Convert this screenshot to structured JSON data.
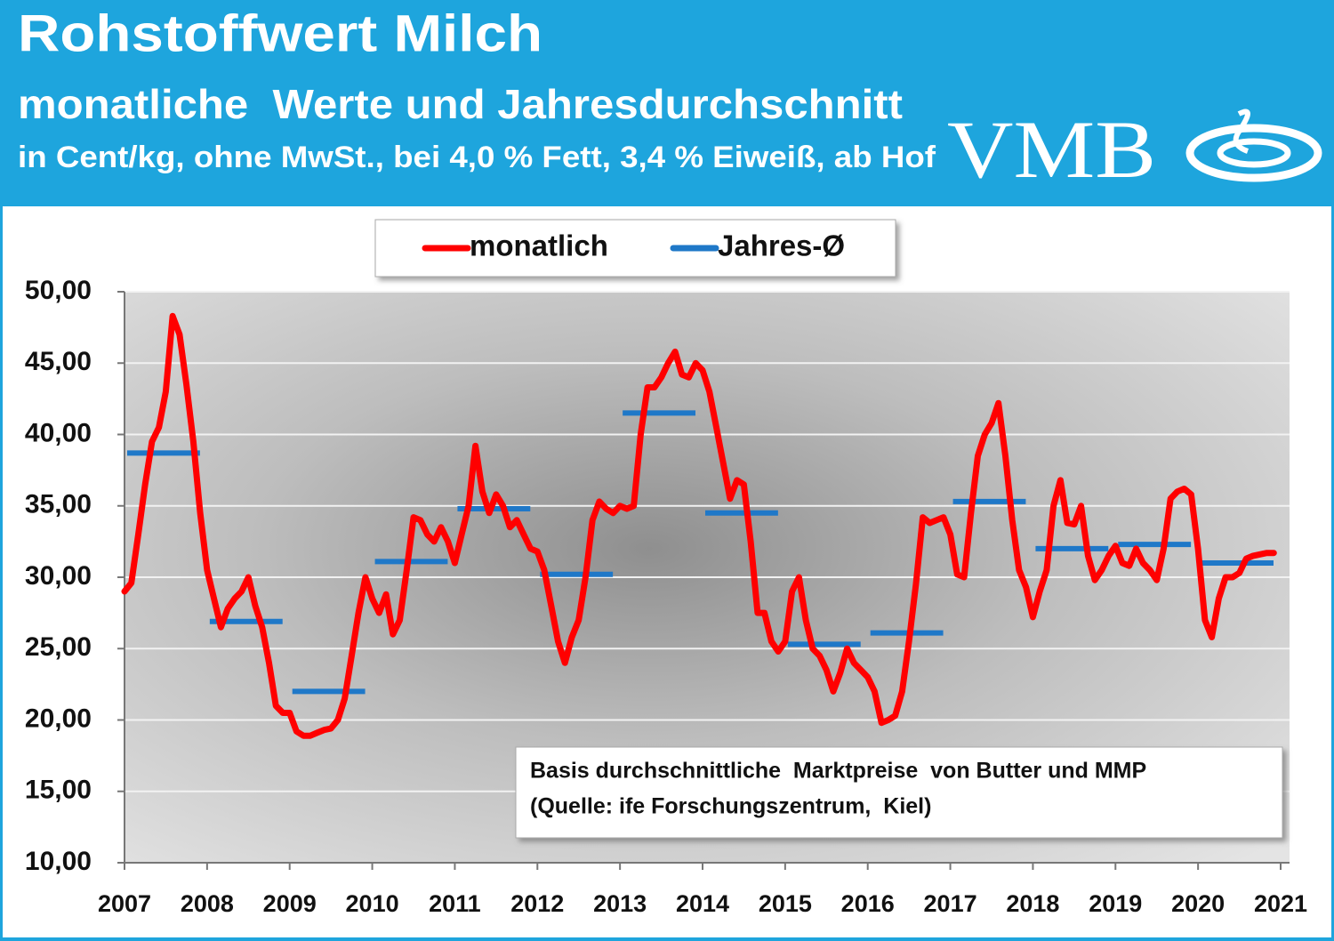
{
  "header": {
    "title": "Rohstoffwert Milch",
    "subtitle": "monatliche  Werte und Jahresdurchschnitt",
    "note": "in Cent/kg, ohne MwSt., bei 4,0 % Fett, 3,4 % Eiweiß, ab Hof",
    "logo": "VMB"
  },
  "chart_data": {
    "type": "line",
    "xlim": [
      2007,
      2021
    ],
    "xticks": [
      2007,
      2008,
      2009,
      2010,
      2011,
      2012,
      2013,
      2014,
      2015,
      2016,
      2017,
      2018,
      2019,
      2020,
      2021
    ],
    "ylim": [
      10,
      50
    ],
    "yticks": [
      {
        "value": 10,
        "label": "10,00"
      },
      {
        "value": 15,
        "label": "15,00"
      },
      {
        "value": 20,
        "label": "20,00"
      },
      {
        "value": 25,
        "label": "25,00"
      },
      {
        "value": 30,
        "label": "30,00"
      },
      {
        "value": 35,
        "label": "35,00"
      },
      {
        "value": 40,
        "label": "40,00"
      },
      {
        "value": 45,
        "label": "45,00"
      },
      {
        "value": 50,
        "label": "50,00"
      }
    ],
    "grid": true,
    "legend": "top",
    "annotation": [
      "Basis durchschnittliche  Marktpreise  von Butter und MMP",
      "(Quelle: ife Forschungszentrum,  Kiel)"
    ],
    "series": [
      {
        "name": "monatlich",
        "color": "#ff0000",
        "x": [
          2007,
          2007.083,
          2007.167,
          2007.25,
          2007.333,
          2007.417,
          2007.5,
          2007.583,
          2007.667,
          2007.75,
          2007.833,
          2007.917,
          2008,
          2008.083,
          2008.167,
          2008.25,
          2008.333,
          2008.417,
          2008.5,
          2008.583,
          2008.667,
          2008.75,
          2008.833,
          2008.917,
          2009,
          2009.083,
          2009.167,
          2009.25,
          2009.333,
          2009.417,
          2009.5,
          2009.583,
          2009.667,
          2009.75,
          2009.833,
          2009.917,
          2010,
          2010.083,
          2010.167,
          2010.25,
          2010.333,
          2010.417,
          2010.5,
          2010.583,
          2010.667,
          2010.75,
          2010.833,
          2010.917,
          2011,
          2011.083,
          2011.167,
          2011.25,
          2011.333,
          2011.417,
          2011.5,
          2011.583,
          2011.667,
          2011.75,
          2011.833,
          2011.917,
          2012,
          2012.083,
          2012.167,
          2012.25,
          2012.333,
          2012.417,
          2012.5,
          2012.583,
          2012.667,
          2012.75,
          2012.833,
          2012.917,
          2013,
          2013.083,
          2013.167,
          2013.25,
          2013.333,
          2013.417,
          2013.5,
          2013.583,
          2013.667,
          2013.75,
          2013.833,
          2013.917,
          2014,
          2014.083,
          2014.167,
          2014.25,
          2014.333,
          2014.417,
          2014.5,
          2014.583,
          2014.667,
          2014.75,
          2014.833,
          2014.917,
          2015,
          2015.083,
          2015.167,
          2015.25,
          2015.333,
          2015.417,
          2015.5,
          2015.583,
          2015.667,
          2015.75,
          2015.833,
          2015.917,
          2016,
          2016.083,
          2016.167,
          2016.25,
          2016.333,
          2016.417,
          2016.5,
          2016.583,
          2016.667,
          2016.75,
          2016.833,
          2016.917,
          2017,
          2017.083,
          2017.167,
          2017.25,
          2017.333,
          2017.417,
          2017.5,
          2017.583,
          2017.667,
          2017.75,
          2017.833,
          2017.917,
          2018,
          2018.083,
          2018.167,
          2018.25,
          2018.333,
          2018.417,
          2018.5,
          2018.583,
          2018.667,
          2018.75,
          2018.833,
          2018.917,
          2019,
          2019.083,
          2019.167,
          2019.25,
          2019.333,
          2019.417,
          2019.5,
          2019.583,
          2019.667,
          2019.75,
          2019.833,
          2019.917,
          2020,
          2020.083,
          2020.167,
          2020.25,
          2020.333,
          2020.417,
          2020.5,
          2020.583,
          2020.667,
          2020.75,
          2020.833,
          2020.917
        ],
        "values": [
          29.0,
          29.6,
          33,
          36.5,
          39.5,
          40.5,
          43,
          48.3,
          47,
          43.5,
          39.5,
          34.5,
          30.5,
          28.5,
          26.5,
          27.8,
          28.5,
          29,
          30,
          28,
          26.5,
          24,
          21,
          20.5,
          20.5,
          19.2,
          18.9,
          18.9,
          19.1,
          19.3,
          19.4,
          20,
          21.5,
          24.5,
          27.5,
          30,
          28.5,
          27.5,
          28.8,
          26,
          27,
          30.5,
          34.2,
          34,
          33,
          32.5,
          33.5,
          32.5,
          31,
          33,
          35,
          39.2,
          36,
          34.5,
          35.8,
          35,
          33.5,
          34,
          33,
          32,
          31.8,
          30.5,
          28,
          25.5,
          24,
          25.8,
          27,
          30,
          34,
          35.3,
          34.8,
          34.5,
          35,
          34.8,
          35,
          40,
          43.3,
          43.3,
          44,
          45,
          45.8,
          44.2,
          44,
          45,
          44.5,
          43,
          40.5,
          38,
          35.5,
          36.8,
          36.5,
          32.5,
          27.5,
          27.5,
          25.5,
          24.8,
          25.5,
          29,
          30,
          27,
          25,
          24.5,
          23.5,
          22,
          23.3,
          25,
          24,
          23.5,
          23,
          22,
          19.8,
          20,
          20.3,
          22,
          25.5,
          29.5,
          34.2,
          33.8,
          34,
          34.2,
          33,
          30.2,
          30,
          34.5,
          38.5,
          40,
          40.8,
          42.2,
          38.5,
          34,
          30.5,
          29.3,
          27.2,
          29,
          30.5,
          35,
          36.8,
          33.8,
          33.7,
          35,
          31.5,
          29.8,
          30.5,
          31.5,
          32.2,
          31,
          30.8,
          32,
          31,
          30.5,
          29.8,
          32,
          35.5,
          36,
          36.2,
          35.8,
          32,
          27,
          25.8,
          28.5,
          30,
          30,
          30.3,
          31.3,
          31.5,
          31.6,
          31.7,
          31.7
        ]
      },
      {
        "name": "Jahres-Ø",
        "color": "#1f78c8",
        "x": [
          2007,
          2008,
          2009,
          2010,
          2011,
          2012,
          2013,
          2014,
          2015,
          2016,
          2017,
          2018,
          2019,
          2020
        ],
        "values": [
          38.7,
          26.9,
          22.0,
          31.1,
          34.8,
          30.2,
          41.5,
          34.5,
          25.3,
          26.1,
          35.3,
          32.0,
          32.3,
          31.0
        ]
      }
    ]
  }
}
